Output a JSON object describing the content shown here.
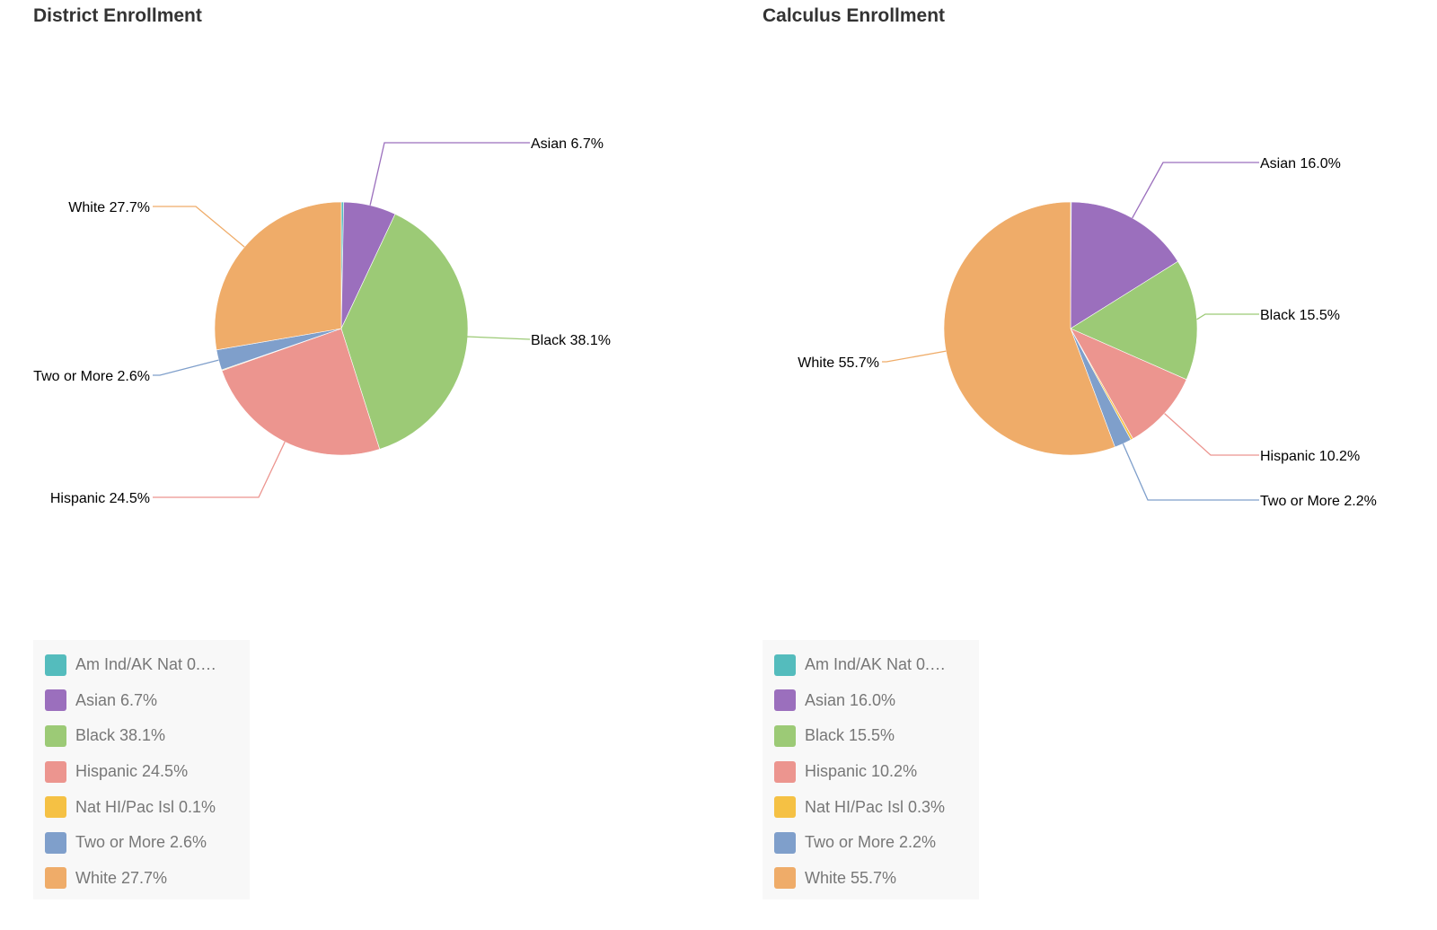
{
  "chart_data": [
    {
      "type": "pie",
      "title": "District Enrollment",
      "slices": [
        {
          "label": "Am Ind/AK Nat",
          "value": 0.3,
          "color": "#54bcbd"
        },
        {
          "label": "Asian",
          "value": 6.7,
          "color": "#9b6fbd"
        },
        {
          "label": "Black",
          "value": 38.1,
          "color": "#9cca76"
        },
        {
          "label": "Hispanic",
          "value": 24.5,
          "color": "#ec958f"
        },
        {
          "label": "Nat HI/Pac Isl",
          "value": 0.1,
          "color": "#f5c144"
        },
        {
          "label": "Two or More",
          "value": 2.6,
          "color": "#7f9fcb"
        },
        {
          "label": "White",
          "value": 27.7,
          "color": "#efac69"
        }
      ],
      "callouts": [
        "Asian 6.7%",
        "Black 38.1%",
        "Hispanic 24.5%",
        "Two or More 2.6%",
        "White 27.7%"
      ],
      "legend": [
        "Am Ind/AK Nat 0.…",
        "Asian 6.7%",
        "Black 38.1%",
        "Hispanic 24.5%",
        "Nat HI/Pac Isl 0.1%",
        "Two or More 2.6%",
        "White 27.7%"
      ],
      "legend_position": "bottom-left"
    },
    {
      "type": "pie",
      "title": "Calculus Enrollment",
      "slices": [
        {
          "label": "Am Ind/AK Nat",
          "value": 0.1,
          "color": "#54bcbd"
        },
        {
          "label": "Asian",
          "value": 16.0,
          "color": "#9b6fbd"
        },
        {
          "label": "Black",
          "value": 15.5,
          "color": "#9cca76"
        },
        {
          "label": "Hispanic",
          "value": 10.2,
          "color": "#ec958f"
        },
        {
          "label": "Nat HI/Pac Isl",
          "value": 0.3,
          "color": "#f5c144"
        },
        {
          "label": "Two or More",
          "value": 2.2,
          "color": "#7f9fcb"
        },
        {
          "label": "White",
          "value": 55.7,
          "color": "#efac69"
        }
      ],
      "callouts": [
        "Asian 16.0%",
        "Black 15.5%",
        "Hispanic 10.2%",
        "Two or More 2.2%",
        "White 55.7%"
      ],
      "legend": [
        "Am Ind/AK Nat 0.…",
        "Asian 16.0%",
        "Black 15.5%",
        "Hispanic 10.2%",
        "Nat HI/Pac Isl 0.3%",
        "Two or More 2.2%",
        "White 55.7%"
      ],
      "legend_position": "bottom-left"
    }
  ]
}
